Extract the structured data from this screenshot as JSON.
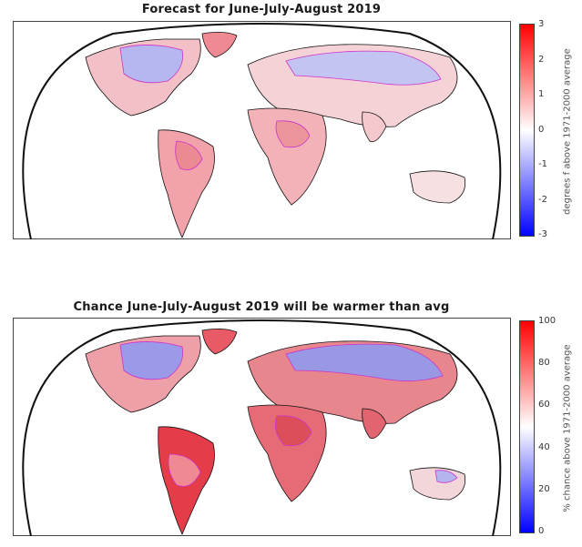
{
  "maps": [
    {
      "title": "Forecast for June-July-August 2019",
      "colorbar": {
        "label": "degrees f above 1971-2000 average",
        "min": -3,
        "max": 3,
        "ticks": [
          "3",
          "2",
          "1",
          "0",
          "-1",
          "-2",
          "-3"
        ],
        "top_color": "#ff0000",
        "mid_color": "#ffffff",
        "bottom_color": "#0000ff"
      }
    },
    {
      "title": "Chance June-July-August 2019 will be warmer than avg",
      "colorbar": {
        "label": "% chance above 1971-2000 average",
        "min": 0,
        "max": 100,
        "ticks": [
          "100",
          "80",
          "60",
          "40",
          "20",
          "0"
        ],
        "top_color": "#ff0000",
        "mid_color": "#ffffff",
        "bottom_color": "#0000ff"
      }
    }
  ],
  "colors": {
    "warm": "#f08080",
    "cool": "#9a9ae8",
    "contour": "#cc33cc",
    "land_outline": "#111111"
  }
}
